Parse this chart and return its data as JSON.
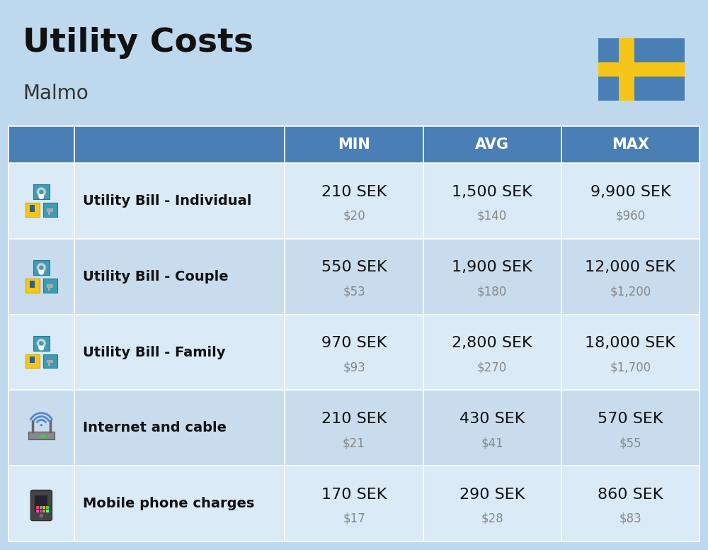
{
  "title": "Utility Costs",
  "subtitle": "Malmo",
  "background_color": "#bed8ed",
  "header_bg_color": "#4a7fb5",
  "header_text_color": "#ffffff",
  "row_bg_even": "#daeaf7",
  "row_bg_odd": "#c8dcee",
  "cell_border_color": "#aac8e0",
  "headers": [
    "MIN",
    "AVG",
    "MAX"
  ],
  "rows": [
    {
      "label": "Utility Bill - Individual",
      "min_sek": "210 SEK",
      "min_usd": "$20",
      "avg_sek": "1,500 SEK",
      "avg_usd": "$140",
      "max_sek": "9,900 SEK",
      "max_usd": "$960"
    },
    {
      "label": "Utility Bill - Couple",
      "min_sek": "550 SEK",
      "min_usd": "$53",
      "avg_sek": "1,900 SEK",
      "avg_usd": "$180",
      "max_sek": "12,000 SEK",
      "max_usd": "$1,200"
    },
    {
      "label": "Utility Bill - Family",
      "min_sek": "970 SEK",
      "min_usd": "$93",
      "avg_sek": "2,800 SEK",
      "avg_usd": "$270",
      "max_sek": "18,000 SEK",
      "max_usd": "$1,700"
    },
    {
      "label": "Internet and cable",
      "min_sek": "210 SEK",
      "min_usd": "$21",
      "avg_sek": "430 SEK",
      "avg_usd": "$41",
      "max_sek": "570 SEK",
      "max_usd": "$55"
    },
    {
      "label": "Mobile phone charges",
      "min_sek": "170 SEK",
      "min_usd": "$17",
      "avg_sek": "290 SEK",
      "avg_usd": "$28",
      "max_sek": "860 SEK",
      "max_usd": "$83"
    }
  ],
  "title_fontsize": 34,
  "subtitle_fontsize": 20,
  "header_fontsize": 15,
  "label_fontsize": 14,
  "sek_fontsize": 16,
  "usd_fontsize": 12,
  "flag_blue": "#4a7fb5",
  "flag_yellow": "#f5c518",
  "fig_width": 10.0,
  "fig_height": 7.76
}
